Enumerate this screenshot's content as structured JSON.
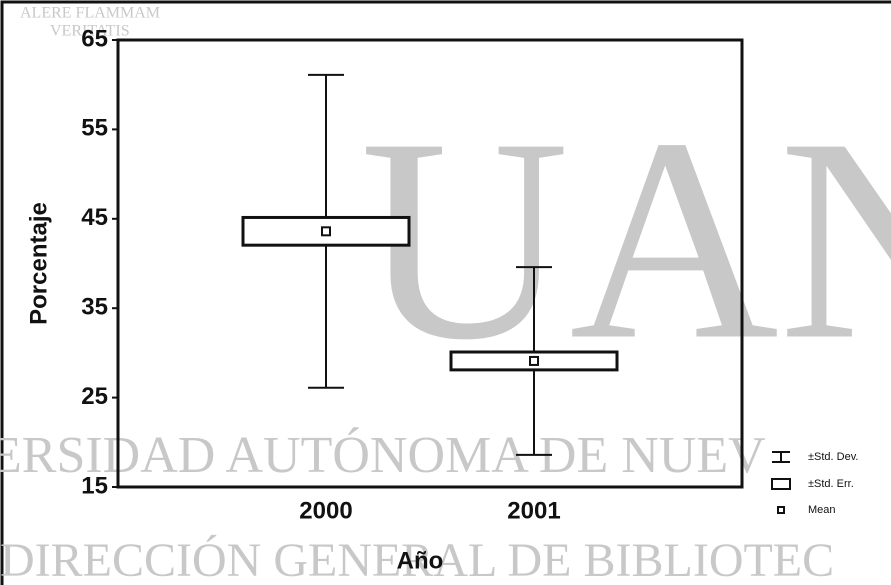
{
  "chart_data": {
    "type": "meanbox",
    "xlabel": "Año",
    "ylabel": "Porcentaje",
    "categories": [
      "2000",
      "2001"
    ],
    "mean": [
      43.6,
      29.1
    ],
    "se": [
      1.55,
      1.0
    ],
    "sd": [
      17.5,
      10.5
    ],
    "ylim": [
      15,
      65
    ],
    "yticks": [
      15,
      25,
      35,
      45,
      55,
      65
    ],
    "legend": [
      "±Std. Dev.",
      "±Std. Err.",
      "Mean"
    ],
    "legend_position": "lower right",
    "color": "#ffffff",
    "watermarks": [
      "ALERE FLAMMAM",
      "VERITATIS",
      "UAN",
      "ERSIDAD AUTÓNOMA DE NUEV",
      "DIRECCIÓN GENERAL DE BIBLIOTEC"
    ]
  }
}
